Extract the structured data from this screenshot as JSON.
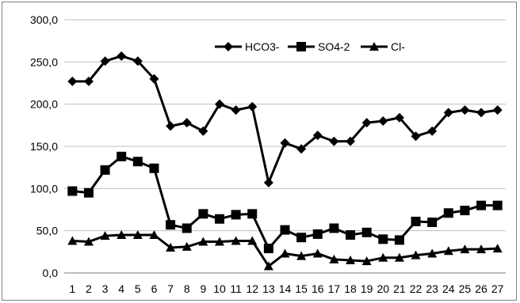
{
  "chart_data": {
    "type": "line",
    "title": "",
    "xlabel": "",
    "ylabel": "",
    "categories": [
      "1",
      "2",
      "3",
      "4",
      "5",
      "6",
      "7",
      "8",
      "9",
      "10",
      "11",
      "12",
      "13",
      "14",
      "15",
      "16",
      "17",
      "18",
      "19",
      "20",
      "21",
      "22",
      "23",
      "24",
      "25",
      "26",
      "27"
    ],
    "ylim": [
      0,
      300
    ],
    "yticks": [
      "0,0",
      "50,0",
      "100,0",
      "150,0",
      "200,0",
      "250,0",
      "300,0"
    ],
    "grid": "horizontal",
    "legend_position": "top-right",
    "series": [
      {
        "name": "HCO3-",
        "marker": "diamond",
        "color": "#000000",
        "values": [
          227,
          227,
          251,
          257,
          251,
          230,
          174,
          178,
          168,
          200,
          193,
          197,
          107,
          154,
          147,
          163,
          156,
          156,
          178,
          180,
          184,
          162,
          168,
          190,
          193,
          190,
          193
        ]
      },
      {
        "name": "SO4-2",
        "marker": "square",
        "color": "#000000",
        "values": [
          97,
          95,
          122,
          138,
          132,
          124,
          57,
          53,
          70,
          64,
          69,
          70,
          29,
          51,
          42,
          46,
          53,
          45,
          48,
          40,
          39,
          61,
          60,
          71,
          74,
          80,
          80
        ]
      },
      {
        "name": "Cl-",
        "marker": "triangle",
        "color": "#000000",
        "values": [
          38,
          37,
          44,
          45,
          45,
          45,
          30,
          31,
          37,
          37,
          38,
          38,
          8,
          23,
          20,
          23,
          16,
          15,
          14,
          18,
          18,
          21,
          23,
          26,
          28,
          28,
          29
        ]
      }
    ]
  }
}
